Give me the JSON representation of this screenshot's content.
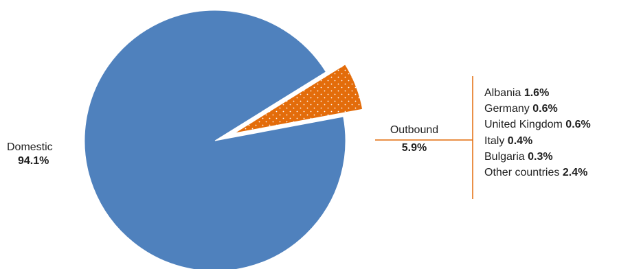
{
  "chart_data": {
    "type": "pie",
    "slices": [
      {
        "label": "Domestic",
        "value": 94.1,
        "value_label": "94.1%",
        "color": "#4f81bd"
      },
      {
        "label": "Outbound",
        "value": 5.9,
        "value_label": "5.9%",
        "color": "#e36c0a",
        "exploded": true,
        "pattern": "dots"
      }
    ],
    "breakdown": {
      "of": "Outbound",
      "items": [
        {
          "label": "Albania",
          "value_label": "1.6%"
        },
        {
          "label": "Germany",
          "value_label": "0.6%"
        },
        {
          "label": "United Kingdom",
          "value_label": "0.6%"
        },
        {
          "label": "Italy",
          "value_label": "0.4%"
        },
        {
          "label": "Bulgaria",
          "value_label": "0.3%"
        },
        {
          "label": "Other countries",
          "value_label": "2.4%"
        }
      ],
      "connector_color": "#e36c0a"
    }
  }
}
